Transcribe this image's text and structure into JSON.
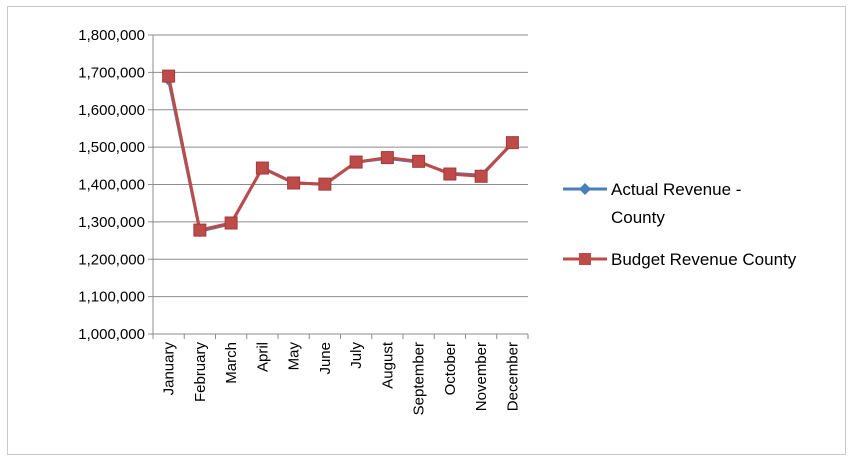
{
  "chart_data": {
    "type": "line",
    "title": "",
    "xlabel": "",
    "ylabel": "",
    "categories": [
      "January",
      "February",
      "March",
      "April",
      "May",
      "June",
      "July",
      "August",
      "September",
      "October",
      "November",
      "December"
    ],
    "ylim": [
      1000000,
      1800000
    ],
    "ytick_step": 100000,
    "ytick_labels": [
      "1,000,000",
      "1,100,000",
      "1,200,000",
      "1,300,000",
      "1,400,000",
      "1,500,000",
      "1,600,000",
      "1,700,000",
      "1,800,000"
    ],
    "grid": true,
    "legend_position": "right",
    "series": [
      {
        "name": "Actual Revenue - County",
        "legend_lines": [
          "Actual Revenue -",
          "County"
        ],
        "color": "#4a7ebb",
        "marker": "diamond",
        "values": [
          1680000,
          1275000,
          1295000,
          1445000,
          1405000,
          1400000,
          1460000,
          1470000,
          1460000,
          1430000,
          1425000,
          1510000
        ]
      },
      {
        "name": "Budget Revenue County",
        "legend_lines": [
          "Budget Revenue County"
        ],
        "color": "#be4b48",
        "marker": "square",
        "values": [
          1690000,
          1278000,
          1297000,
          1444000,
          1404000,
          1401000,
          1460000,
          1472000,
          1462000,
          1428000,
          1422000,
          1512000
        ]
      }
    ]
  }
}
